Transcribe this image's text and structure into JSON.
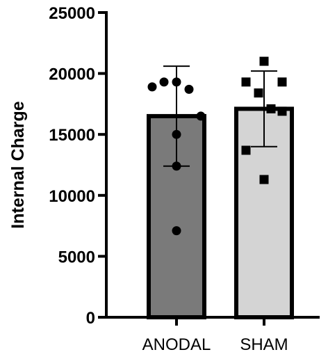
{
  "chart_data": {
    "type": "bar",
    "title": "",
    "xlabel": "",
    "ylabel": "Internal Charge",
    "ylim": [
      0,
      25000
    ],
    "yticks": [
      0,
      5000,
      10000,
      15000,
      20000,
      25000
    ],
    "ytick_labels": [
      "0",
      "5000",
      "10000",
      "15000",
      "20000",
      "25000"
    ],
    "categories": [
      "ANODAL",
      "SHAM"
    ],
    "grid": false,
    "series": [
      {
        "values": [
          16500,
          17100
        ],
        "error": [
          [
            12400,
            20600
          ],
          [
            14000,
            20200
          ]
        ],
        "colors": [
          "#7a7a7a",
          "#d4d4d4"
        ],
        "edge_color": "#000000"
      }
    ],
    "points": [
      {
        "category": "ANODAL",
        "marker": "circle",
        "values": [
          18900,
          19300,
          19300,
          18700,
          16500,
          15000,
          12400,
          7100
        ]
      },
      {
        "category": "SHAM",
        "marker": "square",
        "values": [
          21000,
          19300,
          19300,
          18400,
          17100,
          16900,
          13700,
          11300
        ]
      }
    ]
  }
}
